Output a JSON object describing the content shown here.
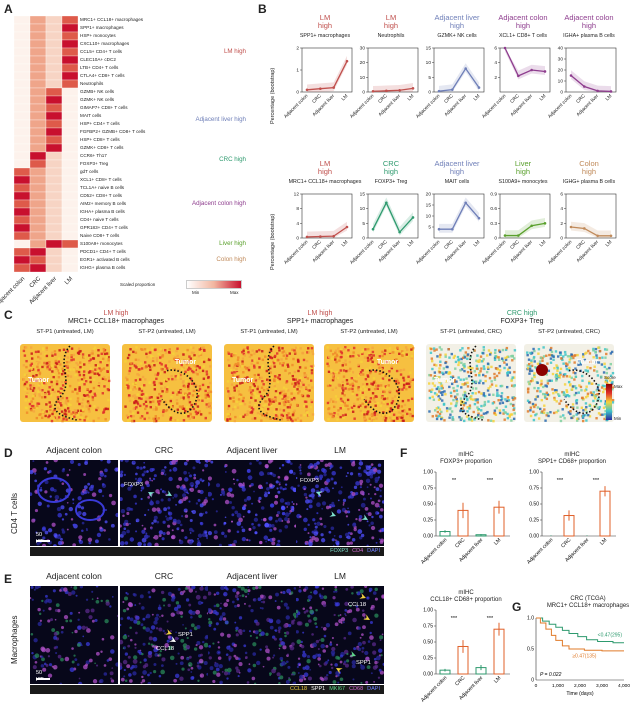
{
  "panel_letters": {
    "a": "A",
    "b": "B",
    "c": "C",
    "d": "D",
    "e": "E",
    "f": "F",
    "g": "G"
  },
  "heatmap": {
    "rows": [
      "MRC1+ CCL18+ macrophages",
      "SPP1+ macrophages",
      "HSP+ monocytes",
      "CXCL10+ macrophages",
      "CCL5+ CD4+ T cells",
      "CLEC10A+ cDC2",
      "LTB+ CD4+ T cells",
      "CTLA4+ CD8+ T cells",
      "Neutrophils",
      "GZMB+ NK cells",
      "GZMK+ NK cells",
      "GIMAP7+ CD8+ T cells",
      "MAIT cells",
      "HSP+ CD4+ T cells",
      "FGFBP2+ GZMB+ CD8+ T cells",
      "HSP+ CD8+ T cells",
      "GZMK+ CD8+ T cells",
      "CCR6+ Th17",
      "FOXP3+ Treg",
      "gdT cells",
      "XCL1+ CD8+ T cells",
      "TCL1A+ naive B cells",
      "CD52+ CD8+ T cells",
      "AIM2+ memory B cells",
      "IGHA+ plasma B cells",
      "CD4+ naive T cells",
      "GPR183+ CD4+ T cells",
      "Naive CD8+ T cells",
      "S100A9+ monocytes",
      "PDCD1+ CD4+ T cells",
      "EGR1+ activated B cells",
      "IGHG+ plasma B cells"
    ],
    "columns": [
      "Adjacent colon",
      "CRC",
      "Adjacent liver",
      "LM"
    ],
    "groups": [
      {
        "label": "LM high",
        "color": "#c0504d"
      },
      {
        "label": "Adjacent liver high",
        "color": "#6f7fb8"
      },
      {
        "label": "CRC high",
        "color": "#2e9a6e"
      },
      {
        "label": "Adjacent colon high",
        "color": "#8e3d8e"
      },
      {
        "label": "Liver high",
        "color": "#5aa02c"
      },
      {
        "label": "Colon high",
        "color": "#c08a5a"
      }
    ],
    "legend_title": "Scaled proportion",
    "legend_min": "Min",
    "legend_max": "Max"
  },
  "panel_b": {
    "ylabel": "Percentage (bootstrap)",
    "x_categories": [
      "Adjacent colon",
      "CRC",
      "Adjacent liver",
      "LM"
    ],
    "row1": [
      {
        "title1": "LM",
        "title2": "high",
        "color": "#c0504d",
        "sub": "SPP1+ macrophages",
        "ymax": 2,
        "ticks": [
          "0",
          "1",
          "2"
        ],
        "values": [
          0.1,
          0.15,
          0.2,
          1.4
        ]
      },
      {
        "title1": "LM",
        "title2": "high",
        "color": "#c0504d",
        "sub": "Neutrophils",
        "ymax": 30,
        "ticks": [
          "0",
          "10",
          "20",
          "30"
        ],
        "values": [
          0.5,
          0.8,
          1.2,
          2.5
        ]
      },
      {
        "title1": "Adjacent liver",
        "title2": "high",
        "color": "#6f7fb8",
        "sub": "GZMK+ NK cells",
        "ymax": 15,
        "ticks": [
          "0",
          "5",
          "10",
          "15"
        ],
        "values": [
          0.3,
          0.8,
          8,
          1.5
        ]
      },
      {
        "title1": "Adjacent colon",
        "title2": "high",
        "color": "#8e3d8e",
        "sub": "XCL1+ CD8+ T cells",
        "ymax": 6,
        "ticks": [
          "2",
          "4",
          "6"
        ],
        "values": [
          6,
          2.2,
          3,
          2.8
        ]
      },
      {
        "title1": "Adjacent colon",
        "title2": "high",
        "color": "#8e3d8e",
        "sub": "IGHA+ plasma B cells",
        "ymax": 40,
        "ticks": [
          "0",
          "10",
          "20",
          "30",
          "40"
        ],
        "values": [
          15,
          5,
          1,
          0.5
        ]
      }
    ],
    "row2": [
      {
        "title1": "LM",
        "title2": "high",
        "color": "#c0504d",
        "sub": "MRC1+ CCL18+ macrophages",
        "ymax": 12,
        "ticks": [
          "0",
          "4",
          "8",
          "12"
        ],
        "values": [
          0.3,
          0.4,
          0.5,
          3
        ]
      },
      {
        "title1": "CRC",
        "title2": "high",
        "color": "#2e9a6e",
        "sub": "FOXP3+ Treg",
        "ymax": 15,
        "ticks": [
          "0",
          "5",
          "10",
          "15"
        ],
        "values": [
          3,
          12,
          2,
          7
        ]
      },
      {
        "title1": "Adjacent liver",
        "title2": "high",
        "color": "#6f7fb8",
        "sub": "MAIT cells",
        "ymax": 20,
        "ticks": [
          "5",
          "10",
          "15",
          "20"
        ],
        "values": [
          4,
          4,
          16,
          9
        ]
      },
      {
        "title1": "Liver",
        "title2": "high",
        "color": "#5aa02c",
        "sub": "S100A9+ monocytes",
        "ymax": 0.9,
        "ticks": [
          "0",
          "0.3",
          "0.6",
          "0.9"
        ],
        "values": [
          0.05,
          0.05,
          0.25,
          0.3
        ]
      },
      {
        "title1": "Colon",
        "title2": "high",
        "color": "#c08a5a",
        "sub": "IGHG+ plasma B cells",
        "ymax": 6,
        "ticks": [
          "0",
          "2",
          "4",
          "6"
        ],
        "values": [
          1.5,
          1.3,
          0.3,
          0.3
        ]
      }
    ]
  },
  "panel_c": {
    "groups": [
      {
        "head1": "LM high",
        "head2": "MRC1+ CCL18+ macrophages",
        "color": "#c0504d"
      },
      {
        "head1": "LM high",
        "head2": "SPP1+ macrophages",
        "color": "#c0504d"
      },
      {
        "head1": "CRC high",
        "head2": "FOXP3+ Treg",
        "color": "#2e9a6e"
      }
    ],
    "images": [
      {
        "label": "ST-P1 (untreated, LM)",
        "tumor": "Tumor"
      },
      {
        "label": "ST-P2 (untreated, LM)",
        "tumor": "Tumor"
      },
      {
        "label": "ST-P1 (untreated, LM)",
        "tumor": "Tumor"
      },
      {
        "label": "ST-P2 (untreated, LM)",
        "tumor": "Tumor"
      },
      {
        "label": "ST-P1 (untreated, CRC)",
        "tumor": "Tumor"
      },
      {
        "label": "ST-P2 (untreated, CRC)",
        "tumor": "Tumor"
      }
    ],
    "score_title": "Score",
    "score_max": "Max",
    "score_min": "Min"
  },
  "panel_d": {
    "row_label": "CD4 T cells",
    "columns": [
      "Adjacent colon",
      "CRC",
      "Adjacent liver",
      "LM"
    ],
    "scale": "50 μm",
    "arrow_labels": [
      "FOXP3",
      "FOXP3"
    ],
    "legend": [
      {
        "text": "FOXP3",
        "color": "#7fe3d0"
      },
      {
        "text": "CD4",
        "color": "#d46bd4"
      },
      {
        "text": "DAPI",
        "color": "#6e7dff"
      }
    ]
  },
  "panel_e": {
    "row_label": "Macrophages",
    "columns": [
      "Adjacent colon",
      "CRC",
      "Adjacent liver",
      "LM"
    ],
    "scale": "50 μm",
    "arrow_labels": [
      "SPP1",
      "CCL18",
      "CCL18",
      "SPP1"
    ],
    "legend": [
      {
        "text": "CCL18",
        "color": "#f0d040"
      },
      {
        "text": "SPP1",
        "color": "#ffffff"
      },
      {
        "text": "MKI67",
        "color": "#5ed68a"
      },
      {
        "text": "CD68",
        "color": "#d46bd4"
      },
      {
        "text": "DAPI",
        "color": "#6e7dff"
      }
    ]
  },
  "panel_f": {
    "categories": [
      "Adjacent colon",
      "CRC",
      "Adjacent liver",
      "LM"
    ],
    "charts": [
      {
        "title1": "mIHC",
        "title2": "FOXP3+ proportion",
        "ticks": [
          "0.00",
          "0.25",
          "0.50",
          "0.75",
          "1.00"
        ],
        "values": [
          0.07,
          0.4,
          0.02,
          0.45
        ],
        "errors": [
          0.02,
          0.12,
          0.01,
          0.1
        ],
        "sig": [
          "**",
          "***"
        ]
      },
      {
        "title1": "mIHC",
        "title2": "SPP1+ CD68+ proportion",
        "ticks": [
          "0.00",
          "0.25",
          "0.50",
          "0.75",
          "1.00"
        ],
        "values": [
          0.0,
          0.32,
          0.0,
          0.7
        ],
        "errors": [
          0.01,
          0.08,
          0.01,
          0.08
        ],
        "sig": [
          "***",
          "***"
        ]
      },
      {
        "title1": "mIHC",
        "title2": "CCL18+ CD68+ proportion",
        "ticks": [
          "0.00",
          "0.25",
          "0.50",
          "0.75",
          "1.00"
        ],
        "values": [
          0.06,
          0.43,
          0.1,
          0.7
        ],
        "errors": [
          0.02,
          0.1,
          0.04,
          0.1
        ],
        "sig": [
          "***",
          "***"
        ]
      }
    ]
  },
  "panel_g": {
    "title1": "CRC (TCGA)",
    "title2": "MRC1+ CCL18+ macrophages",
    "xlabel": "Time (days)",
    "xticks": [
      "0",
      "1,000",
      "2,000",
      "3,000",
      "4,000"
    ],
    "yticks": [
      "0",
      "0.5",
      "1.0"
    ],
    "low_label": "<0.47(295)",
    "high_label": "≥0.47(135)",
    "pvalue": "P = 0.022",
    "low_color": "#2e9a6e",
    "high_color": "#e07b2a"
  }
}
